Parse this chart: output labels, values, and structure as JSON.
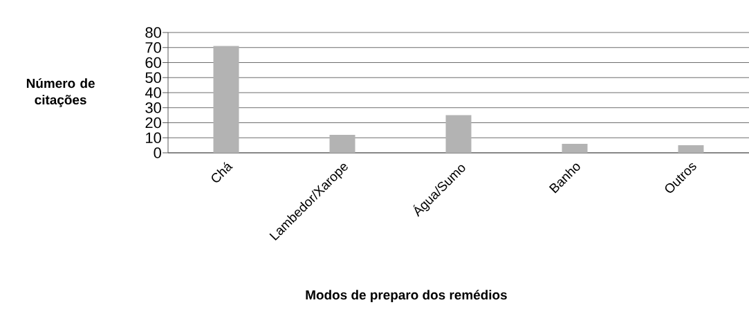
{
  "chart_data": {
    "type": "bar",
    "xlabel": "Modos de preparo dos remédios",
    "ylabel": "Número de citações",
    "categories": [
      "Chá",
      "Lambedor/Xarope",
      "Água/Sumo",
      "Banho",
      "Outros"
    ],
    "values": [
      71,
      12,
      25,
      6,
      5
    ],
    "color": "#b3b3b3",
    "ylim": [
      0,
      80
    ],
    "yticks": [
      0,
      10,
      20,
      30,
      40,
      50,
      60,
      70,
      80
    ],
    "grid": "y"
  }
}
